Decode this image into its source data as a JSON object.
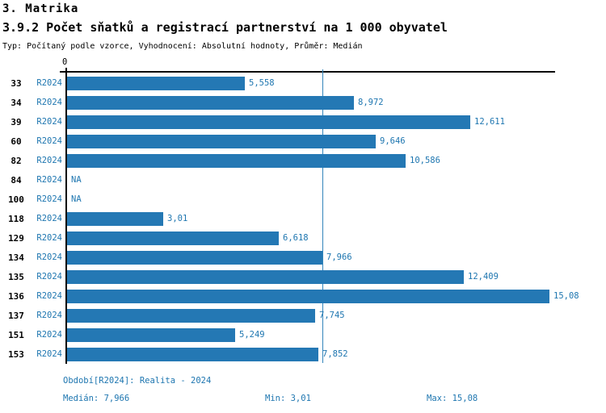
{
  "theme": {
    "accent_blue": "#1e76b0",
    "bar_blue": "#2478b4",
    "median_line_blue": "#3385bb",
    "axis_black": "#000000"
  },
  "header": {
    "title": "3. Matrika",
    "subtitle": "3.9.2 Počet sňatků a registrací partnerství na 1 000 obyvatel",
    "meta": "Typ: Počítaný podle vzorce, Vyhodnocení: Absolutní hodnoty, Průměr: Medián"
  },
  "chart_data": {
    "type": "bar",
    "orientation": "horizontal",
    "title": "3.9.2 Počet sňatků a registrací partnerství na 1 000 obyvatel",
    "categories": [
      "33",
      "34",
      "39",
      "60",
      "82",
      "84",
      "100",
      "118",
      "129",
      "134",
      "135",
      "136",
      "137",
      "151",
      "153"
    ],
    "series_label": "R2024",
    "values": [
      5.558,
      8.972,
      12.611,
      9.646,
      10.586,
      null,
      null,
      3.01,
      6.618,
      7.966,
      12.409,
      15.08,
      7.745,
      5.249,
      7.852
    ],
    "value_labels": [
      "5,558",
      "8,972",
      "12,611",
      "9,646",
      "10,586",
      "NA",
      "NA",
      "3,01",
      "6,618",
      "7,966",
      "12,409",
      "15,08",
      "7,745",
      "5,249",
      "7,852"
    ],
    "na_label": "NA",
    "zero_tick_label": "0",
    "xlim": [
      0,
      15.25
    ],
    "grid": false,
    "median": 7.966,
    "min": 3.01,
    "max": 15.08,
    "bar_color": "#2478b4",
    "median_line_color": "#3385bb"
  },
  "footer": {
    "period": "Období[R2024]: Realita - 2024",
    "median": "Medián: 7,966",
    "min": "Min: 3,01",
    "max": "Max: 15,08"
  }
}
